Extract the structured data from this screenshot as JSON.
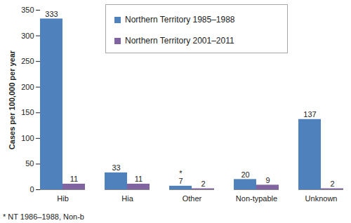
{
  "chart_data": {
    "type": "bar",
    "categories": [
      "Hib",
      "Hia",
      "Other",
      "Non-typable",
      "Unknown"
    ],
    "series": [
      {
        "name": "Northern Territory 1985–1988",
        "color": "#4f81bd",
        "values": [
          333,
          33,
          7,
          20,
          137
        ]
      },
      {
        "name": "Northern Territory 2001–2011",
        "color": "#8064a2",
        "values": [
          11,
          11,
          2,
          9,
          2
        ]
      }
    ],
    "y_label": "Cases per 100,000 per year",
    "ylim": [
      0,
      350
    ],
    "yticks": [
      0,
      50,
      100,
      150,
      200,
      250,
      300,
      350
    ],
    "grid": false,
    "data_labels": true,
    "legend": "top",
    "annotations": [
      {
        "text": "*",
        "category": "Other",
        "series": "Northern Territory 1985–1988"
      }
    ],
    "footnote": "* NT 1986–1988, Non-b"
  }
}
